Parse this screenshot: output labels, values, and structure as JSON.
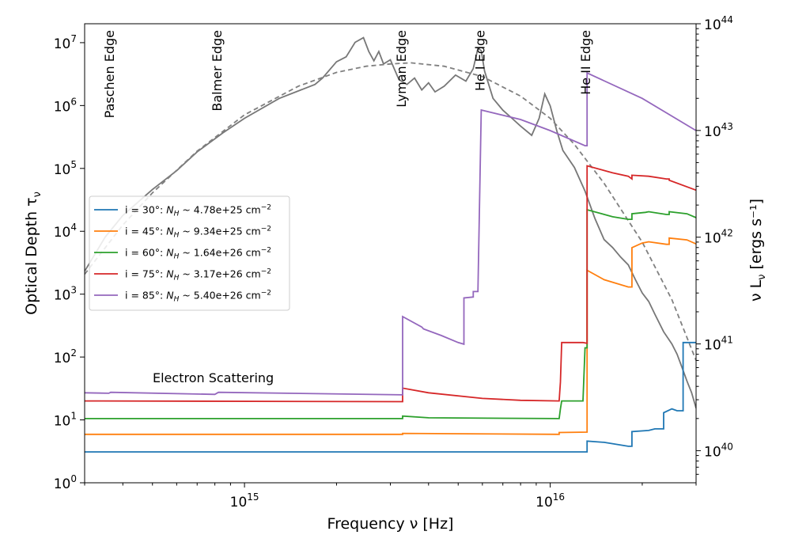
{
  "chart_data": {
    "type": "line",
    "xlabel": "Frequency ν [Hz]",
    "ylabel_left": "Optical Depth τν",
    "ylabel_right": "ν Lν [ergs s⁻¹]",
    "x_scale": "log",
    "y_scale": "log",
    "xlim": [
      300000000000000.0,
      3e+16
    ],
    "ylim_left": [
      1,
      20000000.0
    ],
    "ylim_right": [
      5e+39,
      1e+44
    ],
    "x_ticks": [
      {
        "label": "10",
        "exp": "15",
        "value": 1000000000000000.0
      },
      {
        "label": "10",
        "exp": "16",
        "value": 1e+16
      }
    ],
    "y_ticks_left": [
      {
        "label": "10",
        "exp": "0",
        "value": 1
      },
      {
        "label": "10",
        "exp": "1",
        "value": 10
      },
      {
        "label": "10",
        "exp": "2",
        "value": 100
      },
      {
        "label": "10",
        "exp": "3",
        "value": 1000
      },
      {
        "label": "10",
        "exp": "4",
        "value": 10000
      },
      {
        "label": "10",
        "exp": "5",
        "value": 100000
      },
      {
        "label": "10",
        "exp": "6",
        "value": 1000000
      },
      {
        "label": "10",
        "exp": "7",
        "value": 10000000
      }
    ],
    "y_ticks_right": [
      {
        "label": "10",
        "exp": "40",
        "value": 1e+40
      },
      {
        "label": "10",
        "exp": "41",
        "value": 1e+41
      },
      {
        "label": "10",
        "exp": "42",
        "value": 1e+42
      },
      {
        "label": "10",
        "exp": "43",
        "value": 1e+43
      },
      {
        "label": "10",
        "exp": "44",
        "value": 1e+44
      }
    ],
    "edges": [
      {
        "label": "Paschen Edge",
        "x": 365000000000000.0
      },
      {
        "label": "Balmer Edge",
        "x": 822000000000000.0
      },
      {
        "label": "Lyman Edge",
        "x": 3290000000000000.0
      },
      {
        "label": "He I Edge",
        "x": 5950000000000000.0
      },
      {
        "label": "He II Edge",
        "x": 1.32e+16
      }
    ],
    "annotation": "Electron Scattering",
    "legend_position": "center-left",
    "series": [
      {
        "name": "i = 30°: N_H ~ 4.78e+25 cm⁻²",
        "legend_prefix": "i = 30°: ",
        "legend_n": "N",
        "legend_sub": "H",
        "legend_val": " ~ 4.78e+25 cm",
        "legend_sup": "−2",
        "color": "#1f77b4",
        "points": [
          [
            300000000000000.0,
            3.1
          ],
          [
            1.32e+16,
            3.1
          ],
          [
            1.32e+16,
            4.6
          ],
          [
            1.5e+16,
            4.4
          ],
          [
            1.8e+16,
            3.8
          ],
          [
            1.85e+16,
            3.8
          ],
          [
            1.85e+16,
            6.5
          ],
          [
            2.1e+16,
            6.8
          ],
          [
            2.2e+16,
            7.2
          ],
          [
            2.35e+16,
            7.2
          ],
          [
            2.35e+16,
            13
          ],
          [
            2.5e+16,
            15
          ],
          [
            2.6e+16,
            14
          ],
          [
            2.72e+16,
            14
          ],
          [
            2.72e+16,
            170
          ],
          [
            3e+16,
            170
          ]
        ]
      },
      {
        "name": "i = 45°: N_H ~ 9.34e+25 cm⁻²",
        "legend_prefix": "i = 45°: ",
        "legend_n": "N",
        "legend_sub": "H",
        "legend_val": " ~ 9.34e+25 cm",
        "legend_sup": "−2",
        "color": "#ff7f0e",
        "points": [
          [
            300000000000000.0,
            5.9
          ],
          [
            3290000000000000.0,
            5.9
          ],
          [
            3290000000000000.0,
            6.1
          ],
          [
            1.07e+16,
            5.9
          ],
          [
            1.07e+16,
            6.3
          ],
          [
            1.32e+16,
            6.4
          ],
          [
            1.32e+16,
            2400
          ],
          [
            1.5e+16,
            1700
          ],
          [
            1.8e+16,
            1300
          ],
          [
            1.85e+16,
            1300
          ],
          [
            1.85e+16,
            5500
          ],
          [
            2e+16,
            6500
          ],
          [
            2.1e+16,
            6800
          ],
          [
            2.4e+16,
            6200
          ],
          [
            2.45e+16,
            6200
          ],
          [
            2.45e+16,
            7800
          ],
          [
            2.8e+16,
            7300
          ],
          [
            3e+16,
            6300
          ]
        ]
      },
      {
        "name": "i = 60°: N_H ~ 1.64e+26 cm⁻²",
        "legend_prefix": "i = 60°: ",
        "legend_n": "N",
        "legend_sub": "H",
        "legend_val": " ~ 1.64e+26 cm",
        "legend_sup": "−2",
        "color": "#2ca02c",
        "points": [
          [
            300000000000000.0,
            10.5
          ],
          [
            3290000000000000.0,
            10.5
          ],
          [
            3290000000000000.0,
            11.5
          ],
          [
            4000000000000000.0,
            10.8
          ],
          [
            1.07e+16,
            10.5
          ],
          [
            1.08e+16,
            15
          ],
          [
            1.09e+16,
            20
          ],
          [
            1.28e+16,
            20
          ],
          [
            1.3e+16,
            140
          ],
          [
            1.32e+16,
            140
          ],
          [
            1.32e+16,
            22000
          ],
          [
            1.6e+16,
            17000
          ],
          [
            1.8e+16,
            15500
          ],
          [
            1.85e+16,
            15500
          ],
          [
            1.85e+16,
            19000
          ],
          [
            2.05e+16,
            20000
          ],
          [
            2.1e+16,
            20500
          ],
          [
            2.4e+16,
            18500
          ],
          [
            2.45e+16,
            18500
          ],
          [
            2.45e+16,
            20500
          ],
          [
            2.8e+16,
            19000
          ],
          [
            3e+16,
            16500
          ]
        ]
      },
      {
        "name": "i = 75°: N_H ~ 3.17e+26 cm⁻²",
        "legend_prefix": "i = 75°: ",
        "legend_n": "N",
        "legend_sub": "H",
        "legend_val": " ~ 3.17e+26 cm",
        "legend_sup": "−2",
        "color": "#d62728",
        "points": [
          [
            300000000000000.0,
            20
          ],
          [
            3290000000000000.0,
            19.5
          ],
          [
            3290000000000000.0,
            32
          ],
          [
            4000000000000000.0,
            27
          ],
          [
            6000000000000000.0,
            22
          ],
          [
            8000000000000000.0,
            20.5
          ],
          [
            1.07e+16,
            20
          ],
          [
            1.08e+16,
            40
          ],
          [
            1.09e+16,
            170
          ],
          [
            1.28e+16,
            170
          ],
          [
            1.32e+16,
            165
          ],
          [
            1.32e+16,
            110000.0
          ],
          [
            1.6e+16,
            85000.0
          ],
          [
            1.8e+16,
            75000.0
          ],
          [
            1.85e+16,
            68000.0
          ],
          [
            1.85e+16,
            78000.0
          ],
          [
            2.1e+16,
            75000.0
          ],
          [
            2.4e+16,
            68000.0
          ],
          [
            2.45e+16,
            68000.0
          ],
          [
            2.45e+16,
            65000.0
          ],
          [
            3e+16,
            45000.0
          ]
        ]
      },
      {
        "name": "i = 85°: N_H ~ 5.40e+26 cm⁻²",
        "legend_prefix": "i = 85°: ",
        "legend_n": "N",
        "legend_sub": "H",
        "legend_val": " ~ 5.40e+26 cm",
        "legend_sup": "−2",
        "color": "#9467bd",
        "points": [
          [
            300000000000000.0,
            27
          ],
          [
            360000000000000.0,
            26.5
          ],
          [
            365000000000000.0,
            27.5
          ],
          [
            800000000000000.0,
            25.5
          ],
          [
            822000000000000.0,
            27.5
          ],
          [
            3290000000000000.0,
            25
          ],
          [
            3290000000000000.0,
            440
          ],
          [
            3800000000000000.0,
            300
          ],
          [
            3850000000000000.0,
            280
          ],
          [
            4400000000000000.0,
            220
          ],
          [
            5000000000000000.0,
            170
          ],
          [
            5220000000000000.0,
            160
          ],
          [
            5220000000000000.0,
            870
          ],
          [
            5600000000000000.0,
            900
          ],
          [
            5600000000000000.0,
            1100
          ],
          [
            5800000000000000.0,
            1100
          ],
          [
            5950000000000000.0,
            850000.0
          ],
          [
            8000000000000000.0,
            600000.0
          ],
          [
            1e+16,
            400000.0
          ],
          [
            1.3e+16,
            230000.0
          ],
          [
            1.32e+16,
            230000.0
          ],
          [
            1.32e+16,
            3300000.0
          ],
          [
            2e+16,
            1300000.0
          ],
          [
            3e+16,
            400000.0
          ]
        ]
      }
    ],
    "spectrum_model": {
      "style": "dashed",
      "color": "#808080",
      "axis": "right",
      "points": [
        [
          300000000000000.0,
          4.5e+41
        ],
        [
          400000000000000.0,
          1.3e+42
        ],
        [
          500000000000000.0,
          2.6e+42
        ],
        [
          700000000000000.0,
          6.4e+42
        ],
        [
          1000000000000000.0,
          1.4e+43
        ],
        [
          1500000000000000.0,
          2.6e+43
        ],
        [
          2000000000000000.0,
          3.5e+43
        ],
        [
          2500000000000000.0,
          4e+43
        ],
        [
          3000000000000000.0,
          4.2e+43
        ],
        [
          3500000000000000.0,
          4.3e+43
        ],
        [
          4500000000000000.0,
          4e+43
        ],
        [
          6000000000000000.0,
          3.2e+43
        ],
        [
          8000000000000000.0,
          2.1e+43
        ],
        [
          1e+16,
          1.3e+43
        ],
        [
          1.2e+16,
          7.4e+42
        ],
        [
          1.5e+16,
          3.2e+42
        ],
        [
          2e+16,
          9e+41
        ],
        [
          2.5e+16,
          2.6e+41
        ],
        [
          3e+16,
          7e+40
        ]
      ]
    },
    "spectrum_observed": {
      "style": "solid",
      "color": "#777777",
      "axis": "right",
      "points": [
        [
          300000000000000.0,
          4.8e+41
        ],
        [
          350000000000000.0,
          1e+42
        ],
        [
          400000000000000.0,
          1.6e+42
        ],
        [
          500000000000000.0,
          2.8e+42
        ],
        [
          600000000000000.0,
          4.2e+42
        ],
        [
          700000000000000.0,
          6.3e+42
        ],
        [
          850000000000000.0,
          9.5e+42
        ],
        [
          1000000000000000.0,
          1.3e+43
        ],
        [
          1300000000000000.0,
          2e+43
        ],
        [
          1700000000000000.0,
          2.7e+43
        ],
        [
          1800000000000000.0,
          3.1e+43
        ],
        [
          2000000000000000.0,
          4.4e+43
        ],
        [
          2150000000000000.0,
          4.9e+43
        ],
        [
          2300000000000000.0,
          6.7e+43
        ],
        [
          2450000000000000.0,
          7.4e+43
        ],
        [
          2550000000000000.0,
          5.5e+43
        ],
        [
          2650000000000000.0,
          4.5e+43
        ],
        [
          2750000000000000.0,
          5.5e+43
        ],
        [
          2850000000000000.0,
          4.2e+43
        ],
        [
          3000000000000000.0,
          4.6e+43
        ],
        [
          3200000000000000.0,
          3e+43
        ],
        [
          3400000000000000.0,
          2.7e+43
        ],
        [
          3600000000000000.0,
          3.1e+43
        ],
        [
          3800000000000000.0,
          2.4e+43
        ],
        [
          4000000000000000.0,
          2.8e+43
        ],
        [
          4200000000000000.0,
          2.3e+43
        ],
        [
          4500000000000000.0,
          2.6e+43
        ],
        [
          4900000000000000.0,
          3.3e+43
        ],
        [
          5300000000000000.0,
          2.9e+43
        ],
        [
          5600000000000000.0,
          3.8e+43
        ],
        [
          5800000000000000.0,
          5.9e+43
        ],
        [
          5950000000000000.0,
          5.6e+43
        ],
        [
          6100000000000000.0,
          3.6e+43
        ],
        [
          6500000000000000.0,
          2e+43
        ],
        [
          7000000000000000.0,
          1.55e+43
        ],
        [
          7500000000000000.0,
          1.3e+43
        ],
        [
          8000000000000000.0,
          1.1e+43
        ],
        [
          8700000000000000.0,
          9e+42
        ],
        [
          9200000000000000.0,
          1.3e+43
        ],
        [
          9600000000000000.0,
          2.2e+43
        ],
        [
          1e+16,
          1.7e+43
        ],
        [
          1.05e+16,
          1e+43
        ],
        [
          1.1e+16,
          6.5e+42
        ],
        [
          1.2e+16,
          4.5e+42
        ],
        [
          1.3e+16,
          2.7e+42
        ],
        [
          1.4e+16,
          1.5e+42
        ],
        [
          1.5e+16,
          9.5e+41
        ],
        [
          1.6e+16,
          8e+41
        ],
        [
          1.7e+16,
          6.5e+41
        ],
        [
          1.8e+16,
          5.5e+41
        ],
        [
          1.9e+16,
          4e+41
        ],
        [
          2e+16,
          3e+41
        ],
        [
          2.1e+16,
          2.5e+41
        ],
        [
          2.2e+16,
          1.9e+41
        ],
        [
          2.35e+16,
          1.3e+41
        ],
        [
          2.5e+16,
          1e+41
        ],
        [
          2.6e+16,
          8e+40
        ],
        [
          2.7e+16,
          6e+40
        ],
        [
          2.8e+16,
          4.5e+40
        ],
        [
          2.9e+16,
          3.5e+40
        ],
        [
          3e+16,
          2.5e+40
        ]
      ]
    }
  }
}
